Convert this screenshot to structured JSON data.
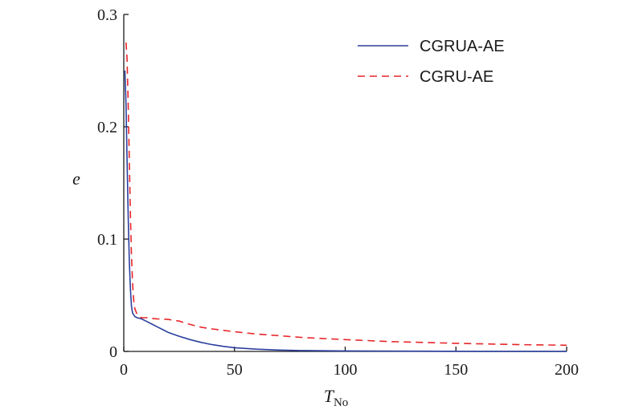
{
  "chart_data": {
    "type": "line",
    "xlabel": "T",
    "xlabel_sub": "No",
    "ylabel": "e",
    "xlim": [
      0,
      200
    ],
    "ylim": [
      0,
      0.3
    ],
    "x_ticks": [
      0,
      50,
      100,
      150,
      200
    ],
    "y_ticks": [
      0,
      0.1,
      0.2,
      0.3
    ],
    "x_tick_labels": [
      "0",
      "50",
      "100",
      "150",
      "200"
    ],
    "y_tick_labels": [
      "0",
      "0.1",
      "0.2",
      "0.3"
    ],
    "grid": false,
    "legend_position": "top-right",
    "series": [
      {
        "name": "CGRUA-AE",
        "color": "#2b3f9e",
        "style": "solid",
        "x": [
          0.5,
          1,
          1.5,
          2,
          2.5,
          3,
          3.5,
          4,
          5,
          6,
          8,
          10,
          12,
          15,
          18,
          20,
          25,
          30,
          35,
          40,
          45,
          50,
          60,
          70,
          80,
          100,
          130,
          160,
          200
        ],
        "y": [
          0.25,
          0.22,
          0.17,
          0.12,
          0.08,
          0.055,
          0.04,
          0.034,
          0.031,
          0.03,
          0.029,
          0.027,
          0.025,
          0.022,
          0.019,
          0.017,
          0.0135,
          0.0105,
          0.008,
          0.006,
          0.0045,
          0.0033,
          0.002,
          0.0012,
          0.0008,
          0.0004,
          0.0002,
          0.0001,
          0.0001
        ]
      },
      {
        "name": "CGRU-AE",
        "color": "#e8262a",
        "style": "dashed",
        "x": [
          1,
          1.5,
          2,
          2.5,
          3,
          3.5,
          4,
          4.5,
          5,
          6,
          7,
          8,
          10,
          12,
          15,
          20,
          25,
          30,
          35,
          40,
          50,
          60,
          80,
          100,
          120,
          150,
          180,
          200
        ],
        "y": [
          0.275,
          0.26,
          0.22,
          0.17,
          0.12,
          0.085,
          0.06,
          0.045,
          0.038,
          0.033,
          0.031,
          0.03,
          0.03,
          0.0295,
          0.029,
          0.0285,
          0.027,
          0.024,
          0.0215,
          0.02,
          0.0175,
          0.0155,
          0.0125,
          0.0105,
          0.0088,
          0.0072,
          0.006,
          0.0055
        ]
      }
    ]
  }
}
